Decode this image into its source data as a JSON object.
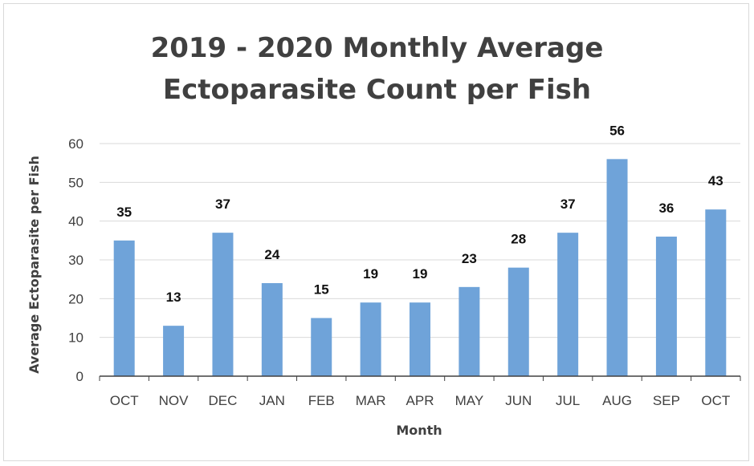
{
  "chart_data": {
    "type": "bar",
    "title": "2019 - 2020 Monthly Average Ectoparasite Count per Fish",
    "title_lines": [
      "2019 - 2020 Monthly Average",
      "Ectoparasite Count per Fish"
    ],
    "xlabel": "Month",
    "ylabel": "Average Ectoparasite per Fish",
    "categories": [
      "OCT",
      "NOV",
      "DEC",
      "JAN",
      "FEB",
      "MAR",
      "APR",
      "MAY",
      "JUN",
      "JUL",
      "AUG",
      "SEP",
      "OCT"
    ],
    "values": [
      35,
      13,
      37,
      24,
      15,
      19,
      19,
      23,
      28,
      37,
      56,
      36,
      43
    ],
    "ylim": [
      0,
      60
    ],
    "yticks": [
      0,
      10,
      20,
      30,
      40,
      50,
      60
    ],
    "grid": true,
    "legend": "none",
    "bar_color": "#6fa3d9"
  }
}
